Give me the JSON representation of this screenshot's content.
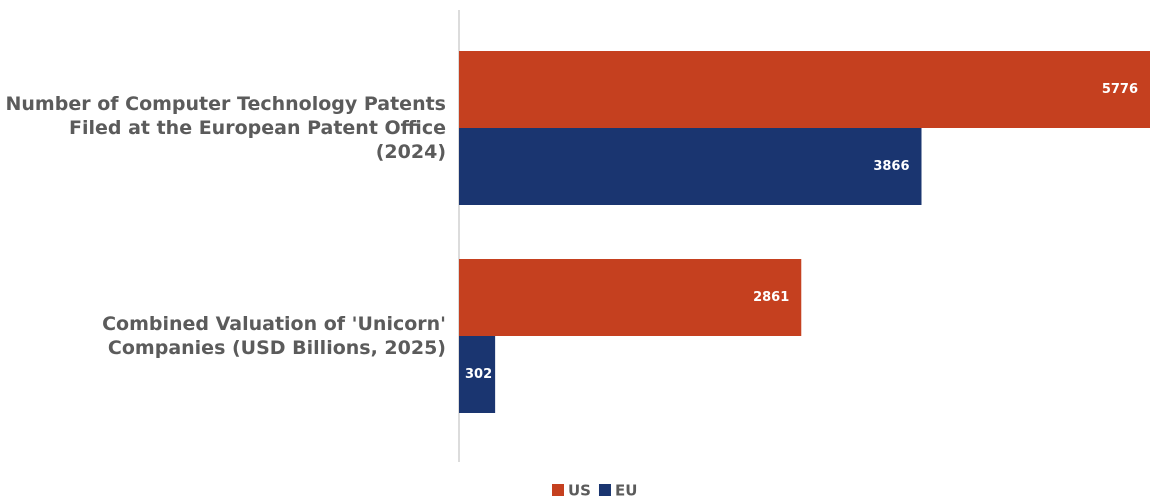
{
  "chart_data": {
    "type": "bar",
    "orientation": "horizontal",
    "categories": [
      "Number of Computer Technology Patents Filed at the European Patent Office (2024)",
      "Combined Valuation of 'Unicorn' Companies (USD Billions, 2025)"
    ],
    "series": [
      {
        "name": "US",
        "color": "#c5401f",
        "values": [
          5776,
          2861
        ]
      },
      {
        "name": "EU",
        "color": "#1a3570",
        "values": [
          3866,
          302
        ]
      }
    ],
    "legend": "bottom"
  }
}
